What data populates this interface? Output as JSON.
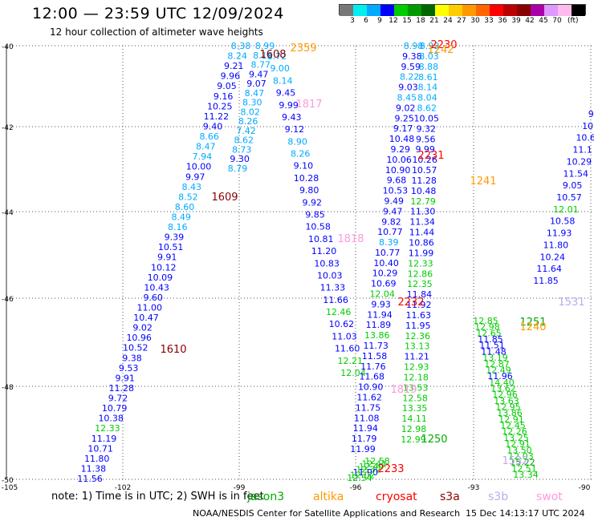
{
  "title": "12:00 — 23:59 UTC 12/09/2024",
  "subtitle": "12 hour collection of altimeter wave heights",
  "colorbar": {
    "colors": [
      "#777777",
      "#00eeee",
      "#00aaff",
      "#0000ff",
      "#00cc00",
      "#009900",
      "#006600",
      "#ffff00",
      "#ffcc00",
      "#ff9900",
      "#ff6600",
      "#ff0000",
      "#bb0000",
      "#880000",
      "#aa00aa",
      "#dd99ff",
      "#ffbbee",
      "#000000"
    ],
    "labels": [
      "3",
      "6",
      "9",
      "12",
      "15",
      "18",
      "21",
      "24",
      "27",
      "30",
      "33",
      "36",
      "39",
      "42",
      "45",
      "70"
    ],
    "unit": "(ft)"
  },
  "axes": {
    "lat_labels": [
      "-40",
      "-42",
      "-44",
      "-46",
      "-48",
      "-50"
    ],
    "lon_labels": [
      "-105",
      "-102",
      "-99",
      "-96",
      "-93",
      "-90"
    ]
  },
  "note": "note:  1) Time is in UTC;  2) SWH is in feet",
  "legend": [
    {
      "name": "jason3",
      "color": "#00aa00"
    },
    {
      "name": "altika",
      "color": "#ff9900"
    },
    {
      "name": "cryosat",
      "color": "#ff0000"
    },
    {
      "name": "s3a",
      "color": "#880000"
    },
    {
      "name": "s3b",
      "color": "#bbaaee"
    },
    {
      "name": "swot",
      "color": "#ff99dd"
    }
  ],
  "footer": "NOAA/NESDIS Center for Satellite Applications and Research",
  "footer_date": "15 Dec 14:13:17 UTC 2024",
  "time_labels": [
    {
      "text": "1608",
      "color": "#880000"
    },
    {
      "text": "2359",
      "color": "#ff9900"
    },
    {
      "text": "1817",
      "color": "#ff99dd"
    },
    {
      "text": "1609",
      "color": "#880000"
    },
    {
      "text": "1818",
      "color": "#ff99dd"
    },
    {
      "text": "1610",
      "color": "#880000"
    },
    {
      "text": "1819",
      "color": "#ff99dd"
    },
    {
      "text": "2230",
      "color": "#ff0000"
    },
    {
      "text": "1242",
      "color": "#ff9900"
    },
    {
      "text": "2231",
      "color": "#ff0000"
    },
    {
      "text": "1241",
      "color": "#ff9900"
    },
    {
      "text": "2232",
      "color": "#ff0000"
    },
    {
      "text": "1531",
      "color": "#bbaaee"
    },
    {
      "text": "1251",
      "color": "#00aa00"
    },
    {
      "text": "1240",
      "color": "#ff9900"
    },
    {
      "text": "1250",
      "color": "#00aa00"
    },
    {
      "text": "2233",
      "color": "#ff0000"
    },
    {
      "text": "1532",
      "color": "#bbaaee"
    }
  ],
  "tracks": [
    {
      "name": "track-a",
      "values": [
        {
          "v": "8.38",
          "c": "#00aaff"
        },
        {
          "v": "8.24",
          "c": "#00aaff"
        },
        {
          "v": "9.21",
          "c": "#0000ff"
        },
        {
          "v": "9.96",
          "c": "#0000ff"
        },
        {
          "v": "9.05",
          "c": "#0000ff"
        },
        {
          "v": "9.16",
          "c": "#0000ff"
        },
        {
          "v": "10.25",
          "c": "#0000ff"
        },
        {
          "v": "11.22",
          "c": "#0000ff"
        },
        {
          "v": "9.40",
          "c": "#0000ff"
        },
        {
          "v": "8.66",
          "c": "#00aaff"
        },
        {
          "v": "8.47",
          "c": "#00aaff"
        },
        {
          "v": "7.94",
          "c": "#00aaff"
        },
        {
          "v": "10.00",
          "c": "#0000ff"
        },
        {
          "v": "9.97",
          "c": "#0000ff"
        },
        {
          "v": "8.43",
          "c": "#00aaff"
        },
        {
          "v": "8.52",
          "c": "#00aaff"
        },
        {
          "v": "8.60",
          "c": "#00aaff"
        },
        {
          "v": "8.49",
          "c": "#00aaff"
        },
        {
          "v": "8.16",
          "c": "#00aaff"
        },
        {
          "v": "9.39",
          "c": "#0000ff"
        },
        {
          "v": "10.51",
          "c": "#0000ff"
        },
        {
          "v": "9.91",
          "c": "#0000ff"
        },
        {
          "v": "10.12",
          "c": "#0000ff"
        },
        {
          "v": "10.09",
          "c": "#0000ff"
        },
        {
          "v": "10.43",
          "c": "#0000ff"
        },
        {
          "v": "9.60",
          "c": "#0000ff"
        },
        {
          "v": "11.00",
          "c": "#0000ff"
        },
        {
          "v": "10.47",
          "c": "#0000ff"
        },
        {
          "v": "9.02",
          "c": "#0000ff"
        },
        {
          "v": "10.96",
          "c": "#0000ff"
        },
        {
          "v": "10.52",
          "c": "#0000ff"
        },
        {
          "v": "9.38",
          "c": "#0000ff"
        },
        {
          "v": "9.53",
          "c": "#0000ff"
        },
        {
          "v": "9.91",
          "c": "#0000ff"
        },
        {
          "v": "11.28",
          "c": "#0000ff"
        },
        {
          "v": "9.72",
          "c": "#0000ff"
        },
        {
          "v": "10.79",
          "c": "#0000ff"
        },
        {
          "v": "10.38",
          "c": "#0000ff"
        },
        {
          "v": "12.33",
          "c": "#00cc00"
        },
        {
          "v": "11.19",
          "c": "#0000ff"
        },
        {
          "v": "10.71",
          "c": "#0000ff"
        },
        {
          "v": "11.80",
          "c": "#0000ff"
        },
        {
          "v": "11.38",
          "c": "#0000ff"
        },
        {
          "v": "11.56",
          "c": "#0000ff"
        }
      ]
    },
    {
      "name": "track-b",
      "values": [
        {
          "v": "8.99",
          "c": "#00aaff"
        },
        {
          "v": "8.16",
          "c": "#00aaff"
        },
        {
          "v": "8.77",
          "c": "#00aaff"
        },
        {
          "v": "9.47",
          "c": "#0000ff"
        },
        {
          "v": "9.07",
          "c": "#0000ff"
        },
        {
          "v": "8.47",
          "c": "#00aaff"
        },
        {
          "v": "8.30",
          "c": "#00aaff"
        },
        {
          "v": "8.02",
          "c": "#00aaff"
        },
        {
          "v": "8.26",
          "c": "#00aaff"
        },
        {
          "v": "7.42",
          "c": "#00aaff"
        },
        {
          "v": "8.62",
          "c": "#00aaff"
        },
        {
          "v": "8.73",
          "c": "#00aaff"
        },
        {
          "v": "9.30",
          "c": "#0000ff"
        },
        {
          "v": "8.79",
          "c": "#00aaff"
        }
      ]
    },
    {
      "name": "track-c",
      "values": [
        {
          "v": "8.72",
          "c": "#00aaff"
        },
        {
          "v": "9.00",
          "c": "#00aaff"
        },
        {
          "v": "8.14",
          "c": "#00aaff"
        },
        {
          "v": "9.45",
          "c": "#0000ff"
        },
        {
          "v": "9.99",
          "c": "#0000ff"
        },
        {
          "v": "9.43",
          "c": "#0000ff"
        },
        {
          "v": "9.12",
          "c": "#0000ff"
        },
        {
          "v": "8.90",
          "c": "#00aaff"
        },
        {
          "v": "8.26",
          "c": "#00aaff"
        },
        {
          "v": "9.10",
          "c": "#0000ff"
        },
        {
          "v": "10.28",
          "c": "#0000ff"
        },
        {
          "v": "9.80",
          "c": "#0000ff"
        },
        {
          "v": "9.92",
          "c": "#0000ff"
        },
        {
          "v": "9.85",
          "c": "#0000ff"
        },
        {
          "v": "10.58",
          "c": "#0000ff"
        },
        {
          "v": "10.81",
          "c": "#0000ff"
        },
        {
          "v": "11.20",
          "c": "#0000ff"
        },
        {
          "v": "10.83",
          "c": "#0000ff"
        },
        {
          "v": "10.03",
          "c": "#0000ff"
        },
        {
          "v": "11.33",
          "c": "#0000ff"
        },
        {
          "v": "11.66",
          "c": "#0000ff"
        },
        {
          "v": "12.46",
          "c": "#00cc00"
        },
        {
          "v": "10.62",
          "c": "#0000ff"
        },
        {
          "v": "11.03",
          "c": "#0000ff"
        },
        {
          "v": "11.60",
          "c": "#0000ff"
        },
        {
          "v": "12.21",
          "c": "#00cc00"
        },
        {
          "v": "12.04",
          "c": "#00cc00"
        }
      ]
    },
    {
      "name": "track-d",
      "values": [
        {
          "v": "8.98",
          "c": "#00aaff"
        },
        {
          "v": "9.38",
          "c": "#0000ff"
        },
        {
          "v": "9.59",
          "c": "#0000ff"
        },
        {
          "v": "8.22",
          "c": "#00aaff"
        },
        {
          "v": "9.03",
          "c": "#0000ff"
        },
        {
          "v": "8.45",
          "c": "#00aaff"
        },
        {
          "v": "9.02",
          "c": "#0000ff"
        },
        {
          "v": "9.25",
          "c": "#0000ff"
        },
        {
          "v": "9.17",
          "c": "#0000ff"
        },
        {
          "v": "10.48",
          "c": "#0000ff"
        },
        {
          "v": "9.29",
          "c": "#0000ff"
        },
        {
          "v": "10.06",
          "c": "#0000ff"
        },
        {
          "v": "10.90",
          "c": "#0000ff"
        },
        {
          "v": "9.68",
          "c": "#0000ff"
        },
        {
          "v": "10.53",
          "c": "#0000ff"
        },
        {
          "v": "9.49",
          "c": "#0000ff"
        },
        {
          "v": "9.47",
          "c": "#0000ff"
        },
        {
          "v": "9.82",
          "c": "#0000ff"
        },
        {
          "v": "10.77",
          "c": "#0000ff"
        },
        {
          "v": "8.39",
          "c": "#00aaff"
        },
        {
          "v": "10.77",
          "c": "#0000ff"
        },
        {
          "v": "10.40",
          "c": "#0000ff"
        },
        {
          "v": "10.29",
          "c": "#0000ff"
        },
        {
          "v": "10.69",
          "c": "#0000ff"
        },
        {
          "v": "12.04",
          "c": "#00cc00"
        },
        {
          "v": "9.93",
          "c": "#0000ff"
        },
        {
          "v": "11.94",
          "c": "#0000ff"
        },
        {
          "v": "11.89",
          "c": "#0000ff"
        },
        {
          "v": "13.86",
          "c": "#00cc00"
        },
        {
          "v": "11.73",
          "c": "#0000ff"
        },
        {
          "v": "11.58",
          "c": "#0000ff"
        },
        {
          "v": "11.76",
          "c": "#0000ff"
        },
        {
          "v": "11.68",
          "c": "#0000ff"
        },
        {
          "v": "10.90",
          "c": "#0000ff"
        },
        {
          "v": "11.62",
          "c": "#0000ff"
        },
        {
          "v": "11.75",
          "c": "#0000ff"
        },
        {
          "v": "11.08",
          "c": "#0000ff"
        },
        {
          "v": "11.94",
          "c": "#0000ff"
        },
        {
          "v": "11.79",
          "c": "#0000ff"
        },
        {
          "v": "11.99",
          "c": "#0000ff"
        }
      ]
    },
    {
      "name": "track-e",
      "values": [
        {
          "v": "8.99",
          "c": "#00aaff"
        },
        {
          "v": "8.03",
          "c": "#00aaff"
        },
        {
          "v": "8.88",
          "c": "#00aaff"
        },
        {
          "v": "8.61",
          "c": "#00aaff"
        },
        {
          "v": "8.14",
          "c": "#00aaff"
        },
        {
          "v": "8.04",
          "c": "#00aaff"
        },
        {
          "v": "8.62",
          "c": "#00aaff"
        },
        {
          "v": "10.05",
          "c": "#0000ff"
        },
        {
          "v": "9.32",
          "c": "#0000ff"
        },
        {
          "v": "9.56",
          "c": "#0000ff"
        },
        {
          "v": "9.99",
          "c": "#0000ff"
        },
        {
          "v": "10.26",
          "c": "#0000ff"
        },
        {
          "v": "10.57",
          "c": "#0000ff"
        },
        {
          "v": "11.28",
          "c": "#0000ff"
        },
        {
          "v": "10.48",
          "c": "#0000ff"
        },
        {
          "v": "12.79",
          "c": "#00cc00"
        },
        {
          "v": "11.30",
          "c": "#0000ff"
        },
        {
          "v": "11.34",
          "c": "#0000ff"
        },
        {
          "v": "11.44",
          "c": "#0000ff"
        },
        {
          "v": "10.86",
          "c": "#0000ff"
        },
        {
          "v": "11.99",
          "c": "#0000ff"
        },
        {
          "v": "12.33",
          "c": "#00cc00"
        },
        {
          "v": "12.86",
          "c": "#00cc00"
        },
        {
          "v": "12.35",
          "c": "#00cc00"
        },
        {
          "v": "11.84",
          "c": "#0000ff"
        },
        {
          "v": "11.92",
          "c": "#0000ff"
        },
        {
          "v": "11.63",
          "c": "#0000ff"
        },
        {
          "v": "11.95",
          "c": "#0000ff"
        },
        {
          "v": "12.36",
          "c": "#00cc00"
        },
        {
          "v": "13.13",
          "c": "#00cc00"
        },
        {
          "v": "11.21",
          "c": "#0000ff"
        },
        {
          "v": "12.93",
          "c": "#00cc00"
        },
        {
          "v": "12.18",
          "c": "#00cc00"
        },
        {
          "v": "13.53",
          "c": "#00cc00"
        },
        {
          "v": "12.58",
          "c": "#00cc00"
        },
        {
          "v": "13.35",
          "c": "#00cc00"
        },
        {
          "v": "14.11",
          "c": "#00cc00"
        },
        {
          "v": "12.98",
          "c": "#00cc00"
        },
        {
          "v": "12.99",
          "c": "#00cc00"
        }
      ]
    },
    {
      "name": "track-f",
      "values": [
        {
          "v": "12.85",
          "c": "#00cc00"
        },
        {
          "v": "12.98",
          "c": "#00cc00"
        },
        {
          "v": "12.65",
          "c": "#00cc00"
        },
        {
          "v": "11.85",
          "c": "#0000ff"
        },
        {
          "v": "11.51",
          "c": "#0000ff"
        },
        {
          "v": "11.48",
          "c": "#0000ff"
        },
        {
          "v": "13.19",
          "c": "#00cc00"
        },
        {
          "v": "12.87",
          "c": "#00cc00"
        },
        {
          "v": "12.49",
          "c": "#00cc00"
        },
        {
          "v": "11.96",
          "c": "#0000ff"
        },
        {
          "v": "14.40",
          "c": "#00cc00"
        },
        {
          "v": "13.62",
          "c": "#00cc00"
        },
        {
          "v": "12.96",
          "c": "#00cc00"
        },
        {
          "v": "13.63",
          "c": "#00cc00"
        },
        {
          "v": "12.95",
          "c": "#00cc00"
        },
        {
          "v": "13.86",
          "c": "#00cc00"
        },
        {
          "v": "12.91",
          "c": "#00cc00"
        },
        {
          "v": "12.45",
          "c": "#00cc00"
        },
        {
          "v": "12.26",
          "c": "#00cc00"
        },
        {
          "v": "13.25",
          "c": "#00cc00"
        },
        {
          "v": "12.91",
          "c": "#00cc00"
        },
        {
          "v": "13.50",
          "c": "#00cc00"
        },
        {
          "v": "12.03",
          "c": "#00cc00"
        },
        {
          "v": "15.22",
          "c": "#009900"
        },
        {
          "v": "12.51",
          "c": "#00cc00"
        },
        {
          "v": "13.34",
          "c": "#00cc00"
        }
      ]
    },
    {
      "name": "track-g",
      "values": [
        {
          "v": "9.",
          "c": "#0000ff"
        },
        {
          "v": "10.",
          "c": "#0000ff"
        },
        {
          "v": "10.6",
          "c": "#0000ff"
        },
        {
          "v": "11.1",
          "c": "#0000ff"
        },
        {
          "v": "10.29",
          "c": "#0000ff"
        },
        {
          "v": "11.54",
          "c": "#0000ff"
        },
        {
          "v": "9.05",
          "c": "#0000ff"
        },
        {
          "v": "10.57",
          "c": "#0000ff"
        },
        {
          "v": "12.01",
          "c": "#00cc00"
        },
        {
          "v": "10.58",
          "c": "#0000ff"
        },
        {
          "v": "11.93",
          "c": "#0000ff"
        },
        {
          "v": "11.80",
          "c": "#0000ff"
        },
        {
          "v": "10.24",
          "c": "#0000ff"
        },
        {
          "v": "11.64",
          "c": "#0000ff"
        },
        {
          "v": "11.85",
          "c": "#0000ff"
        }
      ]
    },
    {
      "name": "track-h",
      "values": [
        {
          "v": "12.58",
          "c": "#00cc00"
        },
        {
          "v": "12.41",
          "c": "#00cc00"
        },
        {
          "v": "12.49",
          "c": "#00cc00"
        },
        {
          "v": "12.32",
          "c": "#00cc00"
        },
        {
          "v": "11.90",
          "c": "#0000ff"
        },
        {
          "v": "12.02",
          "c": "#00cc00"
        },
        {
          "v": "12.54",
          "c": "#00cc00"
        }
      ]
    }
  ]
}
